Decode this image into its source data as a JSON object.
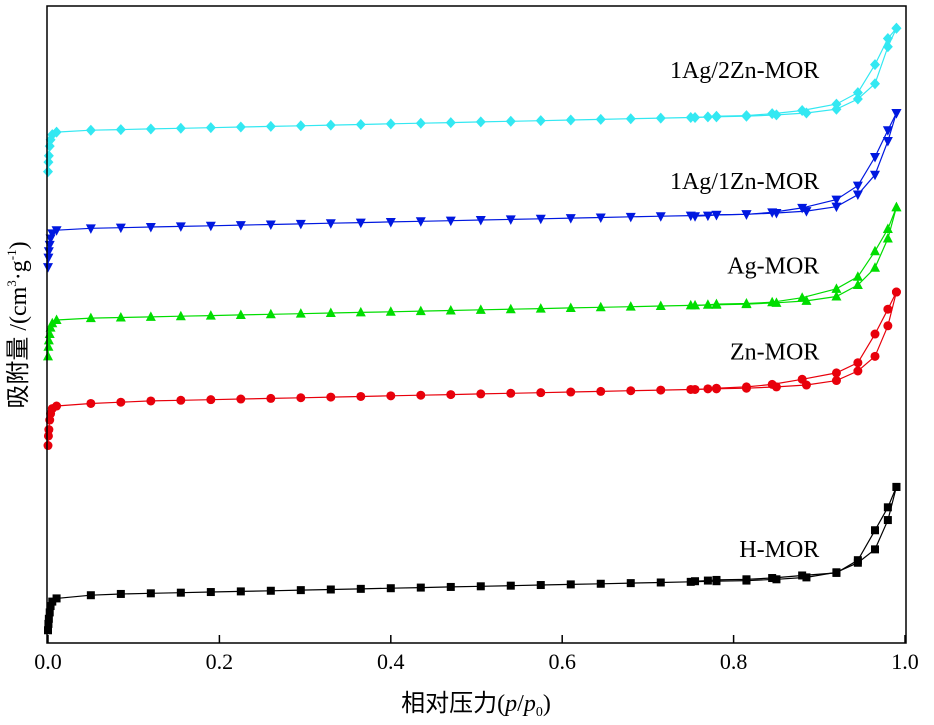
{
  "chart_data": {
    "type": "line",
    "title": "",
    "xlabel": "相对压力(p/p0)",
    "xlabel_parts": {
      "prefix": "相对压力(",
      "p": "p",
      "slash": "/",
      "p0": "p",
      "sub": "0",
      "suffix": ")"
    },
    "ylabel": "吸附量 /(cm³·g⁻¹)",
    "ylabel_parts": {
      "prefix": "吸附量 /(cm",
      "sup3": "3",
      "dot_g": "·g",
      "supneg": "-1",
      "suffix": ")"
    },
    "xlim": [
      0.0,
      1.0
    ],
    "ylim": [
      0,
      100
    ],
    "x_ticks": [
      "0.0",
      "0.2",
      "0.4",
      "0.6",
      "0.8",
      "1.0"
    ],
    "y_ticks": [],
    "grid": false,
    "x": [
      0.0,
      0.0005,
      0.001,
      0.002,
      0.003,
      0.005,
      0.01,
      0.05,
      0.085,
      0.12,
      0.155,
      0.19,
      0.225,
      0.26,
      0.295,
      0.33,
      0.365,
      0.4,
      0.435,
      0.47,
      0.505,
      0.54,
      0.575,
      0.61,
      0.645,
      0.68,
      0.715,
      0.75,
      0.78,
      0.815,
      0.85,
      0.885,
      0.92,
      0.945,
      0.965,
      0.98,
      0.99
    ],
    "series": [
      {
        "name": "H-MOR",
        "color": "#000000",
        "marker": "square",
        "adsorption": [
          2.0,
          3.0,
          3.8,
          4.8,
          5.8,
          6.5,
          7.0,
          7.5,
          7.7,
          7.8,
          7.9,
          8.0,
          8.1,
          8.2,
          8.3,
          8.4,
          8.5,
          8.6,
          8.7,
          8.8,
          8.9,
          9.0,
          9.1,
          9.2,
          9.3,
          9.4,
          9.5,
          9.6,
          9.7,
          9.8,
          10.0,
          10.3,
          11.1,
          12.6,
          14.7,
          19.3,
          24.5
        ],
        "desorption_x": [
          0.99,
          0.98,
          0.965,
          0.945,
          0.92,
          0.88,
          0.845,
          0.815,
          0.78,
          0.77,
          0.755
        ],
        "desorption": [
          24.5,
          21.3,
          17.7,
          13.0,
          11.0,
          10.6,
          10.2,
          10.0,
          9.9,
          9.8,
          9.7
        ]
      },
      {
        "name": "Zn-MOR",
        "color": "#e8000b",
        "marker": "circle",
        "adsorption": [
          31.0,
          32.5,
          33.5,
          35.0,
          36.0,
          36.8,
          37.2,
          37.6,
          37.8,
          38.0,
          38.1,
          38.2,
          38.3,
          38.4,
          38.5,
          38.6,
          38.7,
          38.8,
          38.9,
          39.0,
          39.1,
          39.2,
          39.3,
          39.4,
          39.5,
          39.6,
          39.7,
          39.8,
          39.9,
          40.0,
          40.2,
          40.5,
          41.2,
          42.7,
          45.0,
          49.8,
          55.1
        ],
        "desorption_x": [
          0.99,
          0.98,
          0.965,
          0.945,
          0.92,
          0.88,
          0.845,
          0.815,
          0.78,
          0.77,
          0.755
        ],
        "desorption": [
          55.1,
          52.4,
          48.5,
          44.0,
          42.4,
          41.4,
          40.6,
          40.2,
          40.0,
          39.9,
          39.8
        ]
      },
      {
        "name": "Ag-MOR",
        "color": "#00dd00",
        "marker": "triangle-up",
        "adsorption": [
          45.0,
          46.5,
          47.5,
          48.5,
          49.5,
          50.2,
          50.7,
          51.0,
          51.1,
          51.2,
          51.3,
          51.4,
          51.5,
          51.6,
          51.7,
          51.8,
          51.9,
          52.0,
          52.1,
          52.2,
          52.3,
          52.4,
          52.5,
          52.6,
          52.7,
          52.8,
          52.9,
          53.0,
          53.1,
          53.2,
          53.4,
          53.7,
          54.4,
          56.2,
          58.9,
          63.5,
          68.4
        ],
        "desorption_x": [
          0.99,
          0.98,
          0.965,
          0.945,
          0.92,
          0.88,
          0.845,
          0.815,
          0.78,
          0.77,
          0.755
        ],
        "desorption": [
          68.4,
          65.0,
          61.5,
          57.5,
          55.6,
          54.2,
          53.5,
          53.3,
          53.2,
          53.1,
          53.0
        ]
      },
      {
        "name": "1Ag/1Zn-MOR",
        "color": "#0018e0",
        "marker": "triangle-down",
        "adsorption": [
          59.0,
          60.5,
          61.5,
          62.5,
          63.5,
          64.3,
          64.8,
          65.1,
          65.2,
          65.3,
          65.4,
          65.5,
          65.6,
          65.7,
          65.8,
          65.9,
          66.0,
          66.1,
          66.2,
          66.3,
          66.4,
          66.5,
          66.6,
          66.7,
          66.8,
          66.9,
          67.0,
          67.1,
          67.2,
          67.3,
          67.5,
          67.8,
          68.5,
          70.4,
          73.5,
          78.8,
          83.2
        ],
        "desorption_x": [
          0.99,
          0.98,
          0.965,
          0.945,
          0.92,
          0.88,
          0.845,
          0.815,
          0.78,
          0.77,
          0.755
        ],
        "desorption": [
          83.2,
          80.5,
          76.3,
          71.8,
          69.6,
          68.3,
          67.6,
          67.3,
          67.2,
          67.1,
          67.0
        ]
      },
      {
        "name": "1Ag/2Zn-MOR",
        "color": "#33e8f2",
        "marker": "diamond",
        "adsorption": [
          74.0,
          75.5,
          76.5,
          78.0,
          79.0,
          79.8,
          80.2,
          80.5,
          80.6,
          80.7,
          80.8,
          80.9,
          81.0,
          81.1,
          81.2,
          81.3,
          81.4,
          81.5,
          81.6,
          81.7,
          81.8,
          81.9,
          82.0,
          82.1,
          82.2,
          82.3,
          82.4,
          82.5,
          82.6,
          82.7,
          82.9,
          83.2,
          83.8,
          85.4,
          87.8,
          93.6,
          96.5
        ],
        "desorption_x": [
          0.99,
          0.98,
          0.965,
          0.945,
          0.92,
          0.88,
          0.845,
          0.815,
          0.78,
          0.77,
          0.755
        ],
        "desorption": [
          96.5,
          94.9,
          90.8,
          86.4,
          84.6,
          83.6,
          83.1,
          82.8,
          82.7,
          82.6,
          82.5
        ]
      }
    ]
  }
}
